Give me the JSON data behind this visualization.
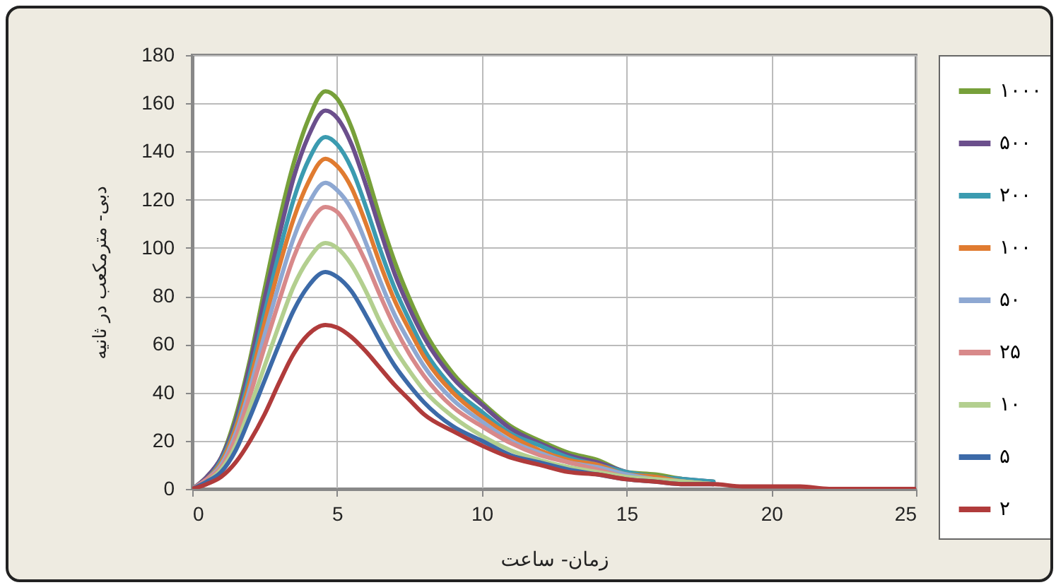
{
  "chart_data": {
    "type": "line",
    "xlabel": "زمان- ساعت",
    "ylabel": "دبی- مترمکعب در ثانیه",
    "x": [
      0,
      0.5,
      1,
      1.5,
      2,
      2.5,
      3,
      3.5,
      4,
      4.6,
      5,
      5.5,
      6,
      6.5,
      7,
      7.5,
      8,
      9,
      10,
      11,
      12,
      13,
      14,
      15,
      16,
      17,
      18,
      19,
      20,
      21,
      22,
      23,
      25
    ],
    "series": [
      {
        "name": "۱۰۰۰",
        "color": "#77a03a",
        "values": [
          0,
          5,
          13,
          30,
          54,
          83,
          111,
          135,
          153,
          165,
          162,
          150,
          132,
          112,
          94,
          79,
          66,
          48,
          36,
          26,
          20,
          15,
          12,
          7,
          6,
          4,
          3,
          null,
          null,
          null,
          null,
          null,
          null
        ]
      },
      {
        "name": "۵۰۰",
        "color": "#6b4f8c",
        "values": [
          0,
          5,
          13,
          28,
          52,
          79,
          105,
          129,
          146,
          157,
          154,
          143,
          126,
          107,
          89,
          75,
          63,
          46,
          35,
          25,
          19,
          14,
          11,
          7,
          5,
          4,
          3,
          null,
          null,
          null,
          null,
          null,
          null
        ]
      },
      {
        "name": "۲۰۰",
        "color": "#3b9bb0",
        "values": [
          0,
          4,
          12,
          26,
          48,
          73,
          98,
          120,
          136,
          146,
          143,
          133,
          117,
          99,
          83,
          70,
          58,
          42,
          32,
          23,
          18,
          13,
          10,
          7,
          5,
          4,
          3,
          null,
          null,
          null,
          null,
          null,
          null
        ]
      },
      {
        "name": "۱۰۰",
        "color": "#e07b30",
        "values": [
          0,
          4,
          11,
          25,
          45,
          69,
          92,
          112,
          127,
          137,
          134,
          125,
          110,
          93,
          78,
          66,
          55,
          40,
          30,
          22,
          16,
          12,
          10,
          6,
          5,
          3,
          2,
          null,
          null,
          null,
          null,
          null,
          null
        ]
      },
      {
        "name": "۵۰",
        "color": "#8ea8d2",
        "values": [
          0,
          4,
          10,
          23,
          42,
          64,
          85,
          104,
          118,
          127,
          124,
          116,
          102,
          86,
          72,
          61,
          51,
          37,
          28,
          20,
          15,
          11,
          9,
          6,
          4,
          3,
          2,
          null,
          null,
          null,
          null,
          null,
          null
        ]
      },
      {
        "name": "۲۵",
        "color": "#d8898a",
        "values": [
          0,
          4,
          9,
          21,
          39,
          59,
          78,
          96,
          109,
          117,
          115,
          106,
          94,
          80,
          67,
          56,
          47,
          34,
          26,
          19,
          14,
          11,
          8,
          5,
          4,
          3,
          2,
          null,
          null,
          null,
          null,
          null,
          null
        ]
      },
      {
        "name": "۱۰",
        "color": "#b3cf8f",
        "values": [
          0,
          3,
          8,
          18,
          34,
          51,
          68,
          84,
          95,
          102,
          100,
          93,
          82,
          69,
          58,
          49,
          41,
          30,
          22,
          16,
          12,
          9,
          7,
          5,
          4,
          3,
          2,
          null,
          null,
          null,
          null,
          null,
          null
        ]
      },
      {
        "name": "۵",
        "color": "#3c6aa8",
        "values": [
          0,
          3,
          7,
          16,
          30,
          45,
          60,
          74,
          84,
          90,
          88,
          82,
          72,
          61,
          51,
          43,
          36,
          26,
          20,
          14,
          11,
          8,
          6,
          4,
          3,
          2,
          2,
          null,
          null,
          null,
          null,
          null,
          null
        ]
      },
      {
        "name": "۲",
        "color": "#b03b3b",
        "values": [
          0,
          2,
          5,
          11,
          20,
          31,
          44,
          56,
          64,
          68,
          67,
          63,
          57,
          50,
          43,
          37,
          31,
          24,
          18,
          13,
          10,
          7,
          6,
          4,
          3,
          2,
          2,
          1,
          1,
          1,
          0,
          0,
          0
        ]
      }
    ],
    "xlim": [
      0,
      25
    ],
    "xticks": [
      0,
      5,
      10,
      15,
      20,
      25
    ],
    "ylim": [
      0,
      180
    ],
    "yticks": [
      0,
      20,
      40,
      60,
      80,
      100,
      120,
      140,
      160,
      180
    ],
    "grid": true,
    "legend": "right",
    "marker": "none",
    "line_style": "solid"
  }
}
